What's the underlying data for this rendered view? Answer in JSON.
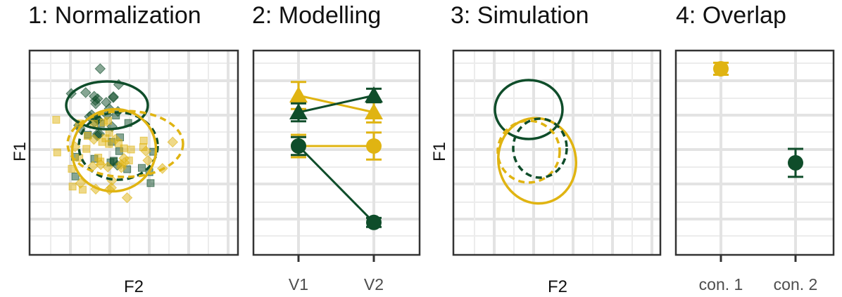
{
  "colors": {
    "con1": "#E0B412",
    "con2": "#0F4D2A"
  },
  "titles": [
    "1: Normalization",
    "2: Modelling",
    "3: Simulation",
    "4: Overlap"
  ],
  "chart_data": [
    {
      "type": "scatter",
      "title": "1: Normalization",
      "xlabel": "F2",
      "ylabel": "F1",
      "grid": true,
      "note": "Scatter of tokens for two conditions (gold squares/diamonds vs dark green squares/diamonds) with confidence ellipses; solid and dashed ellipses per condition."
    },
    {
      "type": "line",
      "title": "2: Modelling",
      "categories": [
        "V1",
        "V2"
      ],
      "ylabel": "",
      "grid": true,
      "series": [
        {
          "color": "con1",
          "shape": "triangle",
          "values": [
            0.85,
            0.7
          ],
          "err": [
            0.12,
            0.09
          ]
        },
        {
          "color": "con2",
          "shape": "triangle",
          "values": [
            0.7,
            0.85
          ],
          "err": [
            0.08,
            0.06
          ]
        },
        {
          "color": "con1",
          "shape": "circle",
          "values": [
            0.4,
            0.4
          ],
          "err": [
            0.1,
            0.12
          ]
        },
        {
          "color": "con2",
          "shape": "circle",
          "values": [
            0.4,
            -0.28
          ],
          "err": [
            0.08,
            0.04
          ]
        }
      ]
    },
    {
      "type": "scatter",
      "title": "3: Simulation",
      "xlabel": "F2",
      "ylabel": "F1",
      "grid": true,
      "note": "Simulated distributions drawn as ellipses only."
    },
    {
      "type": "scatter",
      "title": "4: Overlap",
      "categories": [
        "con. 1",
        "con. 2"
      ],
      "grid": true,
      "series": [
        {
          "color": "con1",
          "values": [
            0.93,
            null
          ],
          "err": [
            0.03,
            null
          ]
        },
        {
          "color": "con2",
          "values": [
            null,
            0.46
          ],
          "err": [
            null,
            0.07
          ]
        }
      ]
    }
  ]
}
